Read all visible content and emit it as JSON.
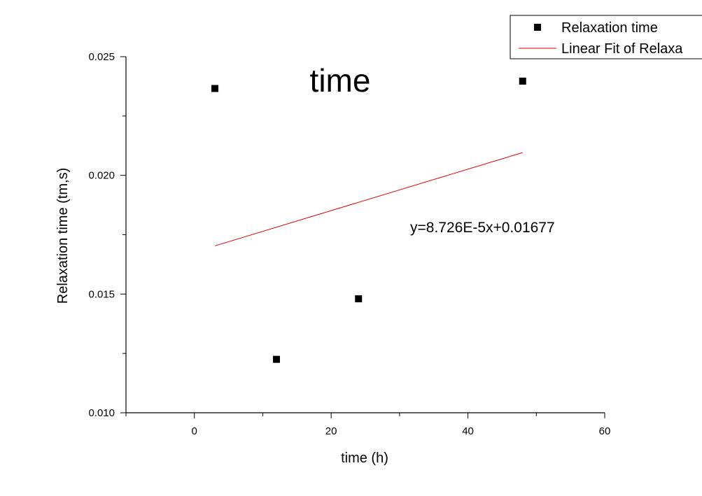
{
  "chart_data": {
    "type": "scatter",
    "title": "time",
    "xlabel": "time (h)",
    "ylabel": "Relaxation time (tm,s)",
    "xlim": [
      -10,
      60
    ],
    "ylim": [
      0.01,
      0.025
    ],
    "xticks": [
      0,
      20,
      40,
      60
    ],
    "yticks": [
      0.01,
      0.015,
      0.02,
      0.025
    ],
    "xtick_labels": [
      "0",
      "20",
      "40",
      "60"
    ],
    "ytick_labels": [
      "0.010",
      "0.015",
      "0.020",
      "0.025"
    ],
    "series": [
      {
        "name": "Relaxation time",
        "kind": "scatter",
        "marker": "square",
        "color": "#000000",
        "x": [
          3,
          12,
          24,
          48
        ],
        "y": [
          0.02366,
          0.01225,
          0.0148,
          0.02397
        ]
      },
      {
        "name": "Linear Fit of Relaxa",
        "kind": "line",
        "color": "#e00000",
        "x": [
          3,
          48
        ],
        "y": [
          0.01703,
          0.02096
        ]
      }
    ],
    "annotations": [
      {
        "text": "y=8.726E-5x+0.01677"
      }
    ],
    "legend_position": "top-right",
    "grid": false
  }
}
